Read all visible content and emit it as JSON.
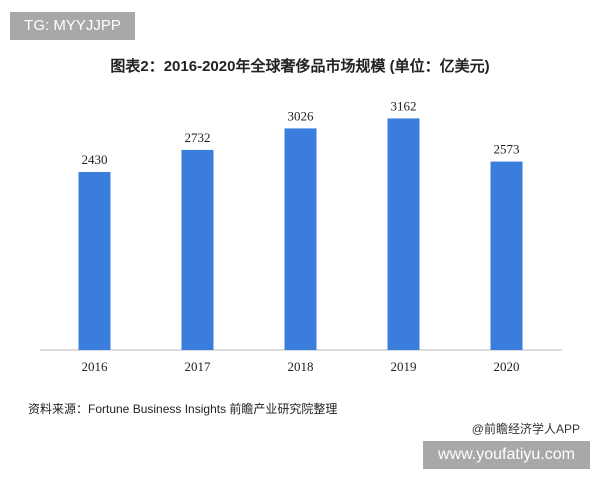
{
  "watermark_top": "TG: MYYJJPP",
  "watermark_bottom": "www.youfatiyu.com",
  "credit": "@前瞻经济学人APP",
  "source": "资料来源：Fortune Business Insights 前瞻产业研究院整理",
  "chart_data": {
    "type": "bar",
    "title": "图表2：2016-2020年全球奢侈品市场规模 (单位：亿美元)",
    "categories": [
      "2016",
      "2017",
      "2018",
      "2019",
      "2020"
    ],
    "values": [
      2430,
      2732,
      3026,
      3162,
      2573
    ],
    "ylim": [
      0,
      3400
    ],
    "grid": false,
    "bar_color": "#3b7ddd",
    "xlabel": "",
    "ylabel": ""
  }
}
